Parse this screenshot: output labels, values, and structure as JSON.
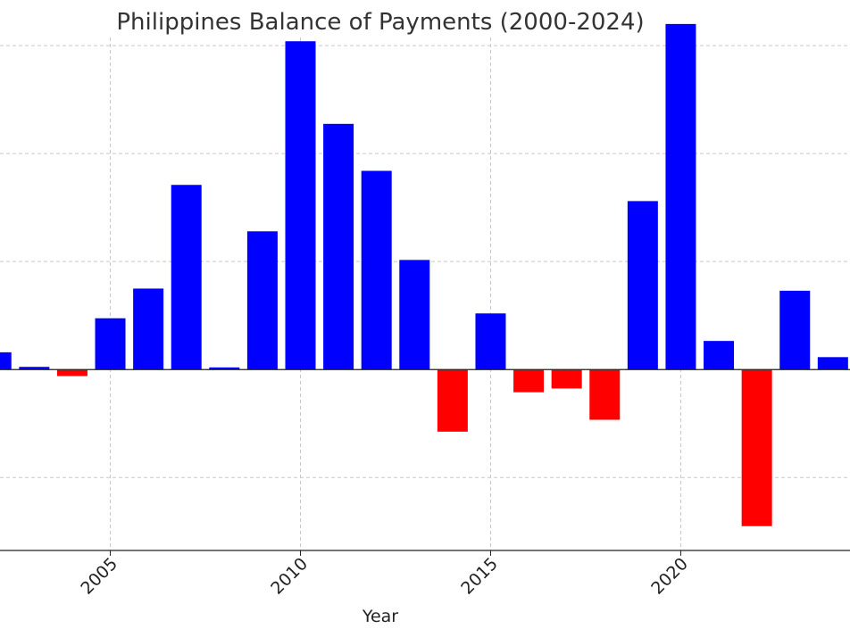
{
  "chart_data": {
    "type": "bar",
    "title": "Philippines Balance of Payments (2000-2024)",
    "xlabel": "Year",
    "ylabel": "",
    "x_ticks": [
      "2005",
      "2010",
      "2015",
      "2020"
    ],
    "y_range": [
      -3.35,
      6.15
    ],
    "x_range": [
      2002.1,
      2024.45
    ],
    "grid": true,
    "colors": {
      "positive": "#0000ff",
      "negative": "#ff0000"
    },
    "categories": [
      "2002",
      "2003",
      "2004",
      "2005",
      "2006",
      "2007",
      "2008",
      "2009",
      "2010",
      "2011",
      "2012",
      "2013",
      "2014",
      "2015",
      "2016",
      "2017",
      "2018",
      "2019",
      "2020",
      "2021",
      "2022",
      "2023",
      "2024"
    ],
    "values": [
      0.32,
      0.05,
      -0.12,
      0.95,
      1.5,
      3.42,
      0.04,
      2.56,
      6.08,
      4.55,
      3.68,
      2.03,
      -1.15,
      1.04,
      -0.42,
      -0.35,
      -0.93,
      3.12,
      6.4,
      0.53,
      -2.9,
      1.46,
      0.23
    ]
  }
}
